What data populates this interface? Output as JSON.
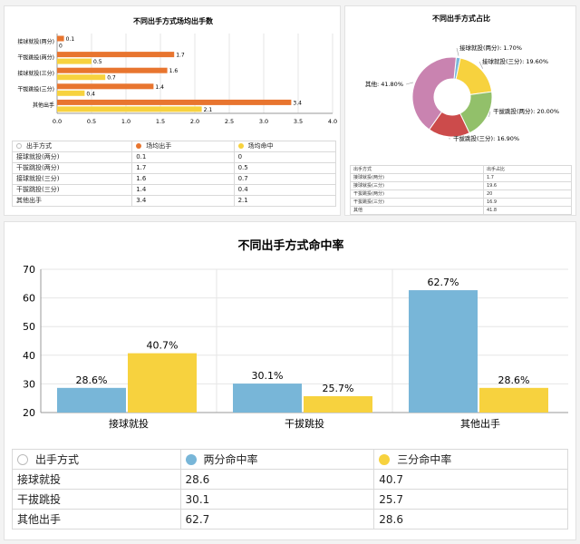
{
  "colors": {
    "orange": "#e8752f",
    "yellow": "#f7d23e",
    "blue": "#78b6d8"
  },
  "chart_data": [
    {
      "type": "bar",
      "orientation": "horizontal",
      "title": "不同出手方式场均出手数",
      "categories": [
        "接球就投(两分)",
        "干拔跳投(两分)",
        "接球就投(三分)",
        "干拔跳投(三分)",
        "其他出手"
      ],
      "series": [
        {
          "name": "场均出手",
          "color": "#e8752f",
          "values": [
            0.1,
            1.7,
            1.6,
            1.4,
            3.4
          ]
        },
        {
          "name": "场均命中",
          "color": "#f7d23e",
          "values": [
            0,
            0.5,
            0.7,
            0.4,
            2.1
          ]
        }
      ],
      "xlim": [
        0,
        4
      ],
      "xticks": [
        "0.0",
        "0.5",
        "1.0",
        "1.5",
        "2.0",
        "2.5",
        "3.0",
        "3.5",
        "4.0"
      ],
      "table": {
        "headers": [
          "出手方式",
          "场均出手",
          "场均命中"
        ],
        "rows": [
          [
            "接球就投(两分)",
            "0.1",
            "0"
          ],
          [
            "干拔跳投(两分)",
            "1.7",
            "0.5"
          ],
          [
            "接球就投(三分)",
            "1.6",
            "0.7"
          ],
          [
            "干拔跳投(三分)",
            "1.4",
            "0.4"
          ],
          [
            "其他出手",
            "3.4",
            "2.1"
          ]
        ]
      }
    },
    {
      "type": "pie",
      "donut": true,
      "title": "不同出手方式占比",
      "slices": [
        {
          "label": "接球就投(两分)",
          "value": 1.7,
          "text": "接球就投(两分): 1.70%",
          "color": "#7ab8d9"
        },
        {
          "label": "接球就投(三分)",
          "value": 19.6,
          "text": "接球就投(三分): 19.60%",
          "color": "#f7d23e"
        },
        {
          "label": "干拔跳投(两分)",
          "value": 20.0,
          "text": "干拔跳投(两分): 20.00%",
          "color": "#92c06a"
        },
        {
          "label": "干拔跳投(三分)",
          "value": 16.9,
          "text": "干拔跳投(三分): 16.90%",
          "color": "#cc4b4b"
        },
        {
          "label": "其他",
          "value": 41.8,
          "text": "其他: 41.80%",
          "color": "#c983b0"
        }
      ],
      "table": {
        "headers": [
          "出手方式",
          "出手占比"
        ],
        "rows": [
          [
            "接球就投(两分)",
            "1.7"
          ],
          [
            "接球就投(三分)",
            "19.6"
          ],
          [
            "干拔跳投(两分)",
            "20"
          ],
          [
            "干拔跳投(三分)",
            "16.9"
          ],
          [
            "其他",
            "41.8"
          ]
        ]
      }
    },
    {
      "type": "bar",
      "title": "不同出手方式命中率",
      "categories": [
        "接球就投",
        "干拔跳投",
        "其他出手"
      ],
      "series": [
        {
          "name": "两分命中率",
          "color": "#78b6d8",
          "values": [
            28.6,
            30.1,
            62.7
          ],
          "labels": [
            "28.6%",
            "30.1%",
            "62.7%"
          ]
        },
        {
          "name": "三分命中率",
          "color": "#f7d23e",
          "values": [
            40.7,
            25.7,
            28.6
          ],
          "labels": [
            "40.7%",
            "25.7%",
            "28.6%"
          ]
        }
      ],
      "ylim": [
        20,
        70
      ],
      "yticks": [
        20,
        30,
        40,
        50,
        60,
        70
      ],
      "grid": true,
      "table": {
        "headers": [
          "出手方式",
          "两分命中率",
          "三分命中率"
        ],
        "rows": [
          [
            "接球就投",
            "28.6",
            "40.7"
          ],
          [
            "干拔跳投",
            "30.1",
            "25.7"
          ],
          [
            "其他出手",
            "62.7",
            "28.6"
          ]
        ]
      }
    }
  ]
}
